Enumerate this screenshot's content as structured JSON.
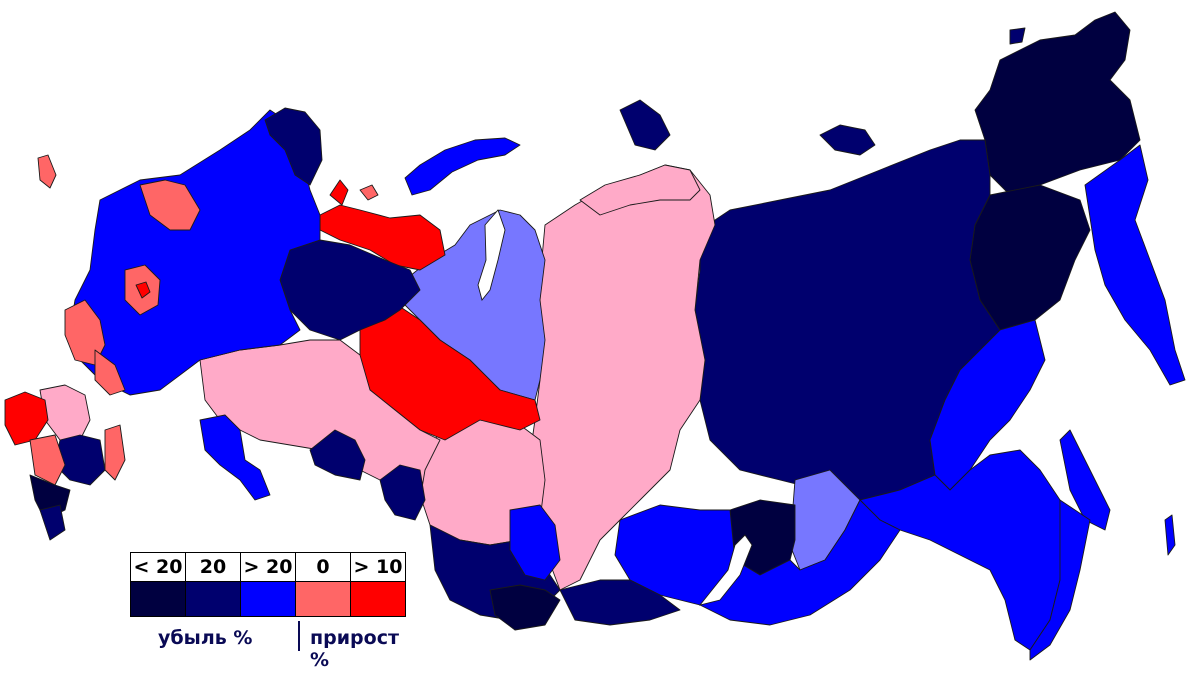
{
  "map": {
    "colors": {
      "decline_lt20": "#000040",
      "decline_20": "#00006e",
      "decline_gt20": "#0000ff",
      "growth_0": "#ff6666",
      "growth_gt10": "#ff0000",
      "pink": "#ffaac8",
      "lavender": "#7777ff"
    }
  },
  "legend": {
    "labels": [
      "< 20",
      "20",
      "> 20",
      "0",
      "> 10"
    ],
    "colors": [
      "#000040",
      "#00006e",
      "#0000ff",
      "#ff6666",
      "#ff0000"
    ],
    "decline_label": "убыль %",
    "growth_label": "прирост %"
  }
}
